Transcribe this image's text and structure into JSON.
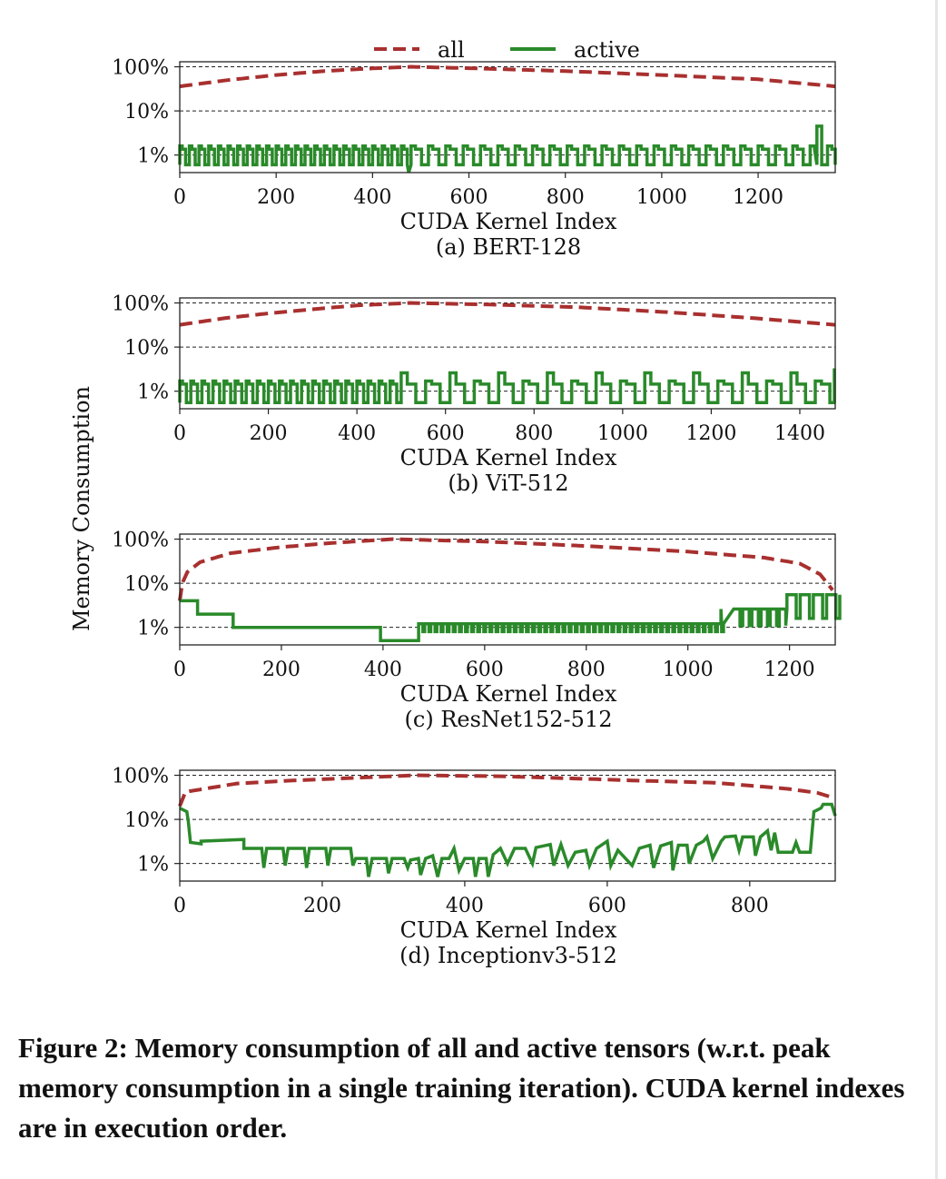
{
  "ylabel": "Memory Consumption",
  "legend": {
    "all": "all",
    "active": "active"
  },
  "colors": {
    "all": "#a8302f",
    "active": "#2a8a2a"
  },
  "caption": "Figure 2: Memory consumption of all and active tensors (w.r.t. peak memory consumption in a single training iteration). CUDA kernel indexes are in execution order.",
  "chart_data": [
    {
      "type": "line",
      "subtitle": "(a) BERT-128",
      "xlabel": "CUDA Kernel Index",
      "ylabel": "Memory Consumption",
      "xlim": [
        0,
        1360
      ],
      "ylim": [
        0.4,
        130
      ],
      "log_y": true,
      "xticks": [
        0,
        200,
        400,
        600,
        800,
        1000,
        1200
      ],
      "yticks": [
        1,
        10,
        100
      ],
      "ytick_labels": [
        "1%",
        "10%",
        "100%"
      ],
      "grid": "y-dashed",
      "legend": "top-center",
      "series": [
        {
          "name": "all",
          "x": [
            0,
            100,
            200,
            300,
            400,
            480,
            600,
            800,
            1000,
            1200,
            1360
          ],
          "values": [
            36,
            50,
            65,
            80,
            92,
            100,
            93,
            80,
            65,
            52,
            36
          ]
        },
        {
          "name": "active",
          "pattern": "square-wave",
          "x_range": [
            0,
            1360
          ],
          "base": 0.6,
          "peak": 1.6,
          "period": 20,
          "change_at": 470,
          "period_after": 36,
          "extra_peak": {
            "x": 1330,
            "value": 4.5
          },
          "dip": {
            "x": 475,
            "value": 0.4
          }
        }
      ]
    },
    {
      "type": "line",
      "subtitle": "(b) ViT-512",
      "xlabel": "CUDA Kernel Index",
      "ylabel": "Memory Consumption",
      "xlim": [
        0,
        1480
      ],
      "ylim": [
        0.4,
        130
      ],
      "log_y": true,
      "xticks": [
        0,
        200,
        400,
        600,
        800,
        1000,
        1200,
        1400
      ],
      "yticks": [
        1,
        10,
        100
      ],
      "ytick_labels": [
        "1%",
        "10%",
        "100%"
      ],
      "grid": "y-dashed",
      "series": [
        {
          "name": "all",
          "x": [
            0,
            100,
            200,
            300,
            400,
            520,
            700,
            900,
            1100,
            1300,
            1480
          ],
          "values": [
            32,
            45,
            58,
            72,
            88,
            100,
            92,
            80,
            62,
            45,
            32
          ]
        },
        {
          "name": "active",
          "pattern": "square-wave",
          "x_range": [
            0,
            1480
          ],
          "base": 0.55,
          "peak": 1.7,
          "period": 25,
          "change_at": 480,
          "period_after": 55,
          "high_peak": 2.6,
          "end_peak": {
            "x": 1478,
            "value": 3.3
          }
        }
      ]
    },
    {
      "type": "line",
      "subtitle": "(c) ResNet152-512",
      "xlabel": "CUDA Kernel Index",
      "ylabel": "Memory Consumption",
      "xlim": [
        0,
        1290
      ],
      "ylim": [
        0.4,
        130
      ],
      "log_y": true,
      "xticks": [
        0,
        200,
        400,
        600,
        800,
        1000,
        1200
      ],
      "yticks": [
        1,
        10,
        100
      ],
      "ytick_labels": [
        "1%",
        "10%",
        "100%"
      ],
      "grid": "y-dashed",
      "series": [
        {
          "name": "all",
          "x": [
            0,
            5,
            15,
            40,
            100,
            200,
            300,
            420,
            600,
            800,
            1000,
            1150,
            1220,
            1260,
            1285
          ],
          "values": [
            4,
            10,
            18,
            30,
            48,
            66,
            82,
            100,
            88,
            70,
            52,
            38,
            28,
            16,
            7
          ]
        },
        {
          "name": "active",
          "points": [
            [
              0,
              4
            ],
            [
              35,
              4
            ],
            [
              35,
              2
            ],
            [
              105,
              2
            ],
            [
              105,
              1
            ],
            [
              395,
              1
            ],
            [
              395,
              0.5
            ],
            [
              470,
              0.5
            ],
            [
              470,
              1.2
            ],
            [
              1065,
              1.2
            ],
            [
              1065,
              2.6
            ],
            [
              1195,
              2.6
            ],
            [
              1195,
              5.5
            ],
            [
              1285,
              5.5
            ]
          ],
          "oscillate": [
            {
              "from": 470,
              "to": 1065,
              "low": 0.8,
              "high": 1.2,
              "period": 12
            },
            {
              "from": 1090,
              "to": 1195,
              "low": 1.1,
              "high": 2.6,
              "period": 18
            },
            {
              "from": 1195,
              "to": 1285,
              "low": 1.6,
              "high": 5.5,
              "period": 26
            }
          ]
        }
      ]
    },
    {
      "type": "line",
      "subtitle": "(d) Inceptionv3-512",
      "xlabel": "CUDA Kernel Index",
      "ylabel": "Memory Consumption",
      "xlim": [
        0,
        920
      ],
      "ylim": [
        0.4,
        130
      ],
      "log_y": true,
      "xticks": [
        0,
        200,
        400,
        600,
        800
      ],
      "yticks": [
        1,
        10,
        100
      ],
      "ytick_labels": [
        "1%",
        "10%",
        "100%"
      ],
      "grid": "y-dashed",
      "series": [
        {
          "name": "all",
          "x": [
            0,
            8,
            30,
            80,
            150,
            250,
            330,
            450,
            550,
            650,
            750,
            850,
            895,
            920
          ],
          "values": [
            20,
            42,
            48,
            65,
            75,
            88,
            100,
            95,
            85,
            75,
            68,
            50,
            40,
            30
          ]
        },
        {
          "name": "active",
          "points": [
            [
              0,
              18
            ],
            [
              10,
              15
            ],
            [
              12,
              9
            ],
            [
              15,
              3
            ],
            [
              30,
              2.8
            ],
            [
              30,
              3.2
            ],
            [
              90,
              3.5
            ],
            [
              90,
              2.2
            ],
            [
              115,
              2.2
            ],
            [
              118,
              0.8
            ],
            [
              122,
              2.2
            ],
            [
              145,
              2.2
            ],
            [
              148,
              0.9
            ],
            [
              152,
              2.2
            ],
            [
              175,
              2.2
            ],
            [
              178,
              0.8
            ],
            [
              182,
              2.2
            ],
            [
              205,
              2.2
            ],
            [
              208,
              0.9
            ],
            [
              212,
              2.2
            ],
            [
              240,
              2.2
            ],
            [
              243,
              0.9
            ],
            [
              247,
              1.3
            ],
            [
              262,
              1.3
            ],
            [
              265,
              0.5
            ],
            [
              270,
              1.3
            ],
            [
              290,
              1.3
            ],
            [
              293,
              0.6
            ],
            [
              298,
              1.3
            ],
            [
              315,
              1.3
            ],
            [
              320,
              0.8
            ],
            [
              324,
              1.2
            ],
            [
              335,
              1.3
            ],
            [
              338,
              0.55
            ],
            [
              345,
              1.3
            ],
            [
              355,
              1.5
            ],
            [
              362,
              0.5
            ],
            [
              368,
              1.3
            ],
            [
              378,
              1.3
            ],
            [
              385,
              2.2
            ],
            [
              392,
              0.7
            ],
            [
              400,
              1.3
            ],
            [
              412,
              1.3
            ],
            [
              415,
              0.5
            ],
            [
              420,
              1.3
            ],
            [
              430,
              1.3
            ],
            [
              433,
              0.5
            ],
            [
              440,
              1.6
            ],
            [
              450,
              2.2
            ],
            [
              460,
              1.0
            ],
            [
              470,
              2.2
            ],
            [
              485,
              2.2
            ],
            [
              495,
              1.0
            ],
            [
              500,
              2.3
            ],
            [
              520,
              2.7
            ],
            [
              525,
              0.9
            ],
            [
              535,
              2.7
            ],
            [
              545,
              0.9
            ],
            [
              555,
              1.8
            ],
            [
              570,
              2.0
            ],
            [
              575,
              0.9
            ],
            [
              585,
              2.2
            ],
            [
              600,
              3.2
            ],
            [
              605,
              0.9
            ],
            [
              615,
              2.0
            ],
            [
              635,
              0.9
            ],
            [
              645,
              2.2
            ],
            [
              660,
              2.6
            ],
            [
              665,
              0.8
            ],
            [
              675,
              2.5
            ],
            [
              690,
              3.0
            ],
            [
              692,
              0.7
            ],
            [
              700,
              2.6
            ],
            [
              712,
              2.6
            ],
            [
              715,
              1.0
            ],
            [
              725,
              2.6
            ],
            [
              735,
              3.2
            ],
            [
              740,
              4.0
            ],
            [
              748,
              1.3
            ],
            [
              760,
              3.2
            ],
            [
              765,
              4.0
            ],
            [
              780,
              4.2
            ],
            [
              785,
              2.0
            ],
            [
              790,
              4.0
            ],
            [
              805,
              4.0
            ],
            [
              808,
              1.5
            ],
            [
              815,
              4.0
            ],
            [
              825,
              5.5
            ],
            [
              830,
              2.0
            ],
            [
              835,
              5.0
            ],
            [
              840,
              1.8
            ],
            [
              860,
              1.8
            ],
            [
              865,
              3.0
            ],
            [
              870,
              1.8
            ],
            [
              885,
              1.8
            ],
            [
              890,
              15
            ],
            [
              900,
              18
            ],
            [
              903,
              22
            ],
            [
              915,
              22
            ],
            [
              920,
              12
            ]
          ]
        }
      ]
    }
  ]
}
